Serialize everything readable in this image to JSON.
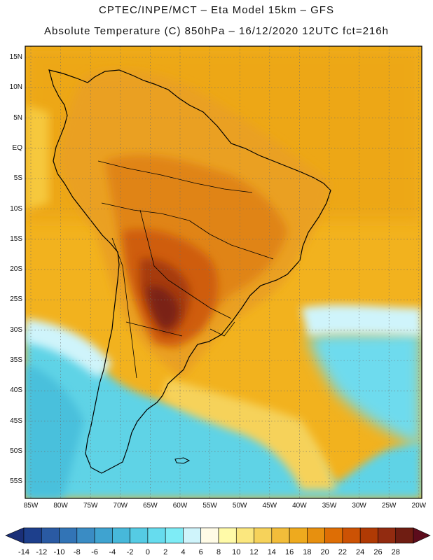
{
  "header": {
    "line1": "CPTEC/INPE/MCT –  Eta Model 15km – GFS",
    "line2": "Absolute Temperature (C) 850hPa – 16/12/2020 12UTC fct=216h"
  },
  "map": {
    "region": "South America",
    "lat_ticks": [
      "15N",
      "10N",
      "5N",
      "EQ",
      "5S",
      "10S",
      "15S",
      "20S",
      "25S",
      "30S",
      "35S",
      "40S",
      "45S",
      "50S",
      "55S"
    ],
    "lon_ticks": [
      "85W",
      "80W",
      "75W",
      "70W",
      "65W",
      "60W",
      "55W",
      "50W",
      "45W",
      "40W",
      "35W",
      "30W",
      "25W",
      "20W"
    ]
  },
  "colorbar": {
    "labels": [
      "-14",
      "-12",
      "-10",
      "-8",
      "-6",
      "-4",
      "-2",
      "0",
      "2",
      "4",
      "6",
      "8",
      "10",
      "12",
      "14",
      "16",
      "18",
      "20",
      "22",
      "24",
      "26",
      "28"
    ],
    "colors": [
      "#1d3f8c",
      "#2a5aa3",
      "#3274b6",
      "#3a8cc4",
      "#3fa3d0",
      "#47b8da",
      "#55cbe4",
      "#66dcee",
      "#7eecf6",
      "#cff4fb",
      "#fffbe6",
      "#fffaa8",
      "#fbe77e",
      "#f6d25a",
      "#f2bd3a",
      "#eeaa1e",
      "#e7900f",
      "#de6e05",
      "#cc5204",
      "#b03a04",
      "#922b10",
      "#6f1d12"
    ],
    "left_arrow_color": "#1a2f78",
    "right_arrow_color": "#5c0c1c"
  }
}
